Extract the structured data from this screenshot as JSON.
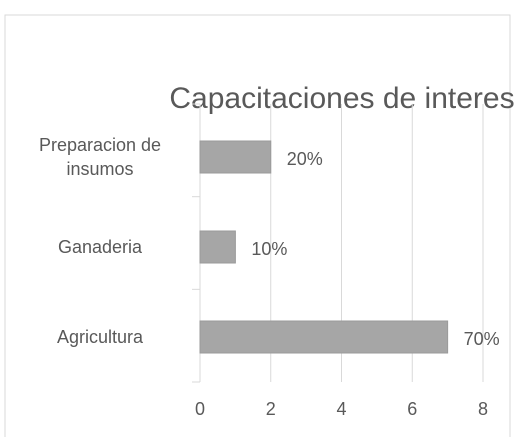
{
  "chart_data": {
    "type": "barh",
    "title": "Capacitaciones de interes",
    "categories": [
      "Preparacion de insumos",
      "Ganaderia",
      "Agricultura"
    ],
    "values": [
      2,
      1,
      7
    ],
    "value_labels": [
      "20%",
      "10%",
      "70%"
    ],
    "color": "#a6a6a6",
    "xlim": [
      0,
      8
    ],
    "xticks": [
      0,
      2,
      4,
      6,
      8
    ],
    "grid": true
  }
}
